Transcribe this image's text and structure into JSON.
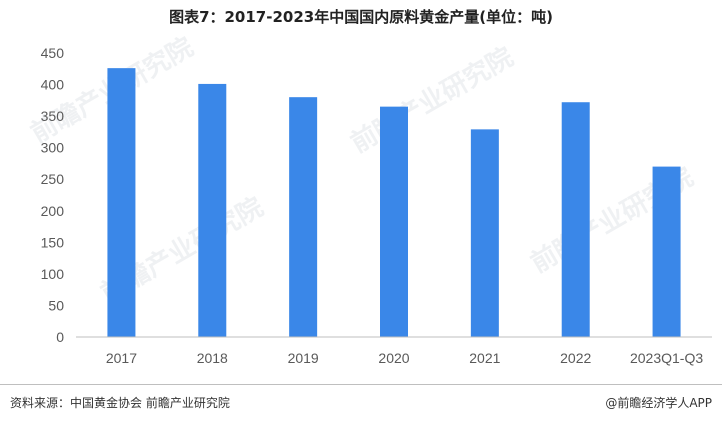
{
  "title": "图表7：2017-2023年中国国内原料黄金产量(单位：吨)",
  "footer": {
    "source": "资料来源：中国黄金协会 前瞻产业研究院",
    "credit": "@前瞻经济学人APP"
  },
  "watermark": "前瞻产业研究院",
  "colors": {
    "bar": "#3a87e8",
    "axis": "#bfbfbf",
    "tick_text": "#595959"
  },
  "chart_data": {
    "type": "bar",
    "title": "图表7：2017-2023年中国国内原料黄金产量(单位：吨)",
    "categories": [
      "2017",
      "2018",
      "2019",
      "2020",
      "2021",
      "2022",
      "2023Q1-Q3"
    ],
    "values": [
      426,
      401,
      380,
      365,
      329,
      372,
      270
    ],
    "ylim": [
      0,
      450
    ],
    "yticks": [
      0,
      50,
      100,
      150,
      200,
      250,
      300,
      350,
      400,
      450
    ],
    "grid": false,
    "legend": "none"
  }
}
